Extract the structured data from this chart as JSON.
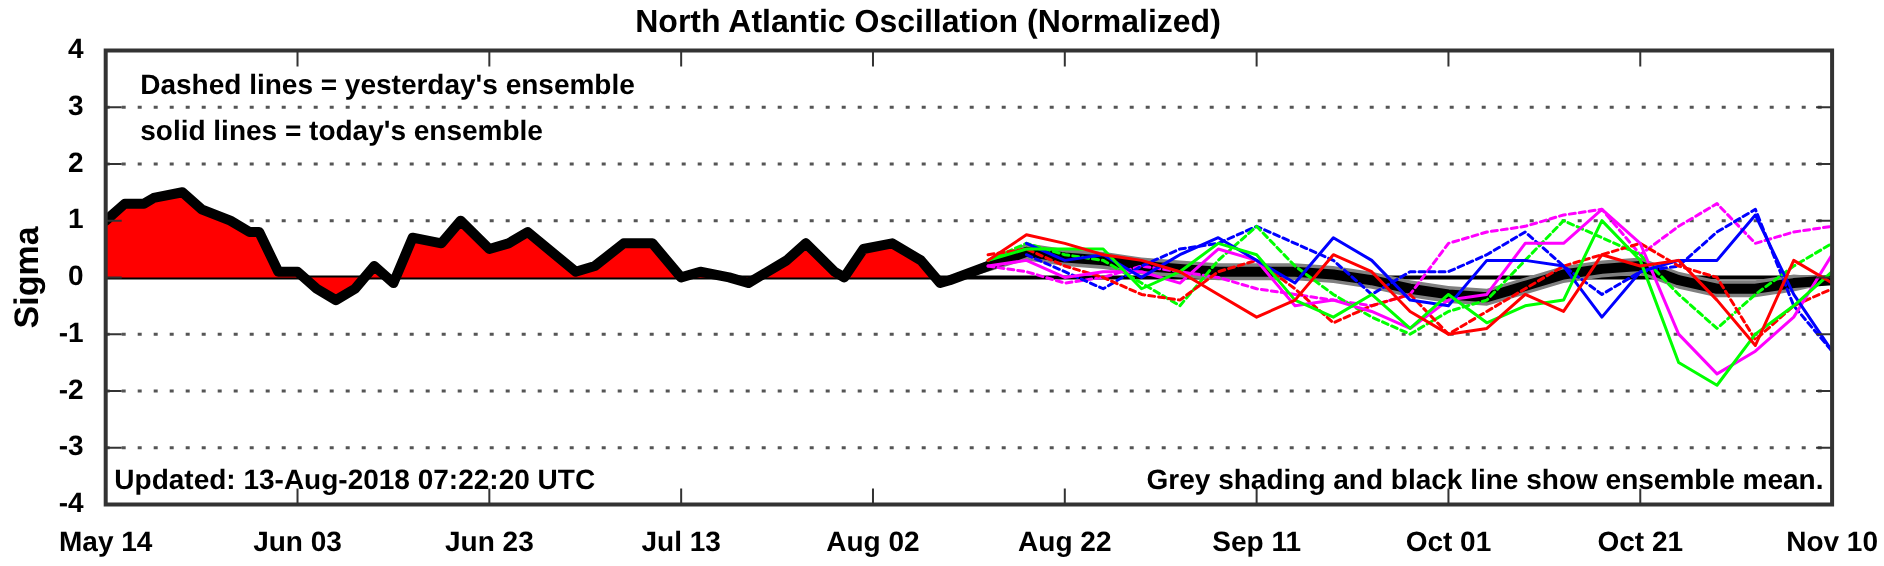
{
  "chart_data": {
    "type": "line",
    "title": "North Atlantic Oscillation (Normalized)",
    "ylabel": "Sigma",
    "annotations": [
      "Dashed lines = yesterday's ensemble",
      "solid lines = today's ensemble",
      "Updated: 13-Aug-2018 07:22:20 UTC",
      "Grey shading and black line show ensemble mean."
    ],
    "x": [
      "2018-08-14",
      "2018-08-18",
      "2018-08-22",
      "2018-08-26",
      "2018-08-30",
      "2018-09-03",
      "2018-09-07",
      "2018-09-11",
      "2018-09-15",
      "2018-09-19",
      "2018-09-23",
      "2018-09-27",
      "2018-10-01",
      "2018-10-05",
      "2018-10-09",
      "2018-10-13",
      "2018-10-17",
      "2018-10-21",
      "2018-10-25",
      "2018-10-29",
      "2018-11-02",
      "2018-11-06",
      "2018-11-10"
    ],
    "series": [
      {
        "type": "area",
        "color": "#ff0000",
        "x": [
          "2018-05-14",
          "2018-05-16",
          "2018-05-18",
          "2018-05-19",
          "2018-05-22",
          "2018-05-24",
          "2018-05-27",
          "2018-05-29",
          "2018-05-30",
          "2018-06-01",
          "2018-06-03",
          "2018-06-05",
          "2018-06-07",
          "2018-06-09",
          "2018-06-11",
          "2018-06-13",
          "2018-06-15",
          "2018-06-18",
          "2018-06-20",
          "2018-06-23",
          "2018-06-25",
          "2018-06-27",
          "2018-07-02",
          "2018-07-04",
          "2018-07-07",
          "2018-07-09",
          "2018-07-10",
          "2018-07-13",
          "2018-07-15",
          "2018-07-18",
          "2018-07-20",
          "2018-07-24",
          "2018-07-26",
          "2018-07-29",
          "2018-07-30",
          "2018-08-01",
          "2018-08-04",
          "2018-08-07",
          "2018-08-09",
          "2018-08-10"
        ],
        "values": [
          1.0,
          1.3,
          1.3,
          1.4,
          1.5,
          1.2,
          1.0,
          0.8,
          0.8,
          0.1,
          0.1,
          -0.2,
          -0.4,
          -0.2,
          0.2,
          -0.1,
          0.7,
          0.6,
          1.0,
          0.5,
          0.6,
          0.8,
          0.1,
          0.2,
          0.6,
          0.6,
          0.6,
          0.0,
          0.1,
          0.0,
          -0.1,
          0.3,
          0.6,
          0.1,
          0.0,
          0.5,
          0.6,
          0.3,
          -0.1,
          -0.05
        ]
      },
      {
        "color": "#ff0000",
        "values": [
          0.3,
          0.75,
          0.6,
          0.4,
          0.3,
          0.1,
          -0.3,
          -0.7,
          -0.4,
          0.4,
          0.1,
          -0.6,
          -1.0,
          -0.9,
          -0.3,
          -0.6,
          0.4,
          0.2,
          0.3,
          -0.4,
          -1.2,
          0.3,
          -0.1
        ]
      },
      {
        "color": "#00ff00",
        "values": [
          0.3,
          0.5,
          0.5,
          0.5,
          -0.2,
          0.1,
          0.6,
          0.4,
          -0.4,
          -0.7,
          -0.3,
          -0.9,
          -0.3,
          -0.8,
          -0.5,
          -0.4,
          1.0,
          0.3,
          -1.5,
          -1.9,
          -1.0,
          -0.5,
          0.1
        ]
      },
      {
        "color": "#0000ff",
        "values": [
          null,
          0.6,
          0.3,
          0.4,
          0.0,
          0.4,
          0.7,
          0.3,
          -0.1,
          0.7,
          0.3,
          -0.4,
          -0.5,
          0.3,
          0.3,
          0.2,
          -0.7,
          0.1,
          0.3,
          0.3,
          1.1,
          -0.3,
          -1.3
        ]
      },
      {
        "color": "#ff00ff",
        "values": [
          0.2,
          0.3,
          0.0,
          0.1,
          0.1,
          -0.1,
          0.5,
          0.3,
          -0.5,
          -0.4,
          -0.6,
          -0.9,
          -0.4,
          -0.3,
          0.6,
          0.6,
          1.2,
          0.6,
          -1.0,
          -1.7,
          -1.3,
          -0.7,
          0.4
        ]
      },
      {
        "color": "#ff0000",
        "line_style": "dashed",
        "values": [
          0.4,
          0.5,
          0.2,
          0.0,
          -0.3,
          -0.4,
          0.1,
          0.3,
          -0.2,
          -0.8,
          -0.5,
          -0.3,
          -1.0,
          -0.6,
          -0.2,
          0.2,
          0.4,
          0.6,
          0.2,
          0.0,
          -1.1,
          -0.5,
          -0.2
        ]
      },
      {
        "color": "#00ff00",
        "line_style": "dashed",
        "values": [
          0.3,
          0.6,
          0.4,
          0.3,
          -0.1,
          -0.5,
          0.3,
          0.9,
          0.2,
          -0.3,
          -0.7,
          -1.0,
          -0.6,
          -0.4,
          0.3,
          1.0,
          0.7,
          0.4,
          -0.3,
          -0.9,
          -0.3,
          0.2,
          0.6
        ]
      },
      {
        "color": "#0000ff",
        "line_style": "dashed",
        "values": [
          null,
          0.4,
          0.1,
          -0.2,
          0.2,
          0.5,
          0.6,
          0.9,
          0.6,
          0.3,
          -0.3,
          0.1,
          0.1,
          0.4,
          0.8,
          0.2,
          -0.3,
          0.1,
          0.2,
          0.8,
          1.2,
          -0.5,
          -1.3
        ]
      },
      {
        "color": "#ff00ff",
        "line_style": "dashed",
        "values": [
          0.2,
          0.1,
          -0.1,
          0.0,
          0.2,
          0.1,
          0.0,
          -0.2,
          -0.3,
          -0.4,
          -0.5,
          -0.3,
          0.6,
          0.8,
          0.9,
          1.1,
          1.2,
          0.4,
          0.9,
          1.3,
          0.6,
          0.8,
          0.9
        ]
      },
      {
        "color": "#000000",
        "x": [
          "2018-05-14",
          "2018-05-16",
          "2018-05-18",
          "2018-05-19",
          "2018-05-22",
          "2018-05-24",
          "2018-05-27",
          "2018-05-29",
          "2018-05-30",
          "2018-06-01",
          "2018-06-03",
          "2018-06-05",
          "2018-06-07",
          "2018-06-09",
          "2018-06-11",
          "2018-06-13",
          "2018-06-15",
          "2018-06-18",
          "2018-06-20",
          "2018-06-23",
          "2018-06-25",
          "2018-06-27",
          "2018-07-02",
          "2018-07-04",
          "2018-07-07",
          "2018-07-09",
          "2018-07-10",
          "2018-07-13",
          "2018-07-15",
          "2018-07-18",
          "2018-07-20",
          "2018-07-24",
          "2018-07-26",
          "2018-07-29",
          "2018-07-30",
          "2018-08-01",
          "2018-08-04",
          "2018-08-07",
          "2018-08-09",
          "2018-08-10",
          "2018-08-14",
          "2018-08-18",
          "2018-08-22",
          "2018-08-26",
          "2018-08-30",
          "2018-09-03",
          "2018-09-07",
          "2018-09-11",
          "2018-09-15",
          "2018-09-19",
          "2018-09-23",
          "2018-09-27",
          "2018-10-01",
          "2018-10-05",
          "2018-10-09",
          "2018-10-13",
          "2018-10-17",
          "2018-10-21",
          "2018-10-25",
          "2018-10-29",
          "2018-11-02",
          "2018-11-06",
          "2018-11-10"
        ],
        "values": [
          1.0,
          1.3,
          1.3,
          1.4,
          1.5,
          1.2,
          1.0,
          0.8,
          0.8,
          0.1,
          0.1,
          -0.2,
          -0.4,
          -0.2,
          0.2,
          -0.1,
          0.7,
          0.6,
          1.0,
          0.5,
          0.6,
          0.8,
          0.1,
          0.2,
          0.6,
          0.6,
          0.6,
          0.0,
          0.1,
          0.0,
          -0.1,
          0.3,
          0.6,
          0.1,
          0.0,
          0.5,
          0.6,
          0.3,
          -0.1,
          -0.05,
          0.2,
          0.45,
          0.35,
          0.3,
          0.2,
          0.15,
          0.1,
          0.1,
          0.1,
          0.05,
          -0.05,
          -0.2,
          -0.3,
          -0.35,
          -0.15,
          0.05,
          0.15,
          0.2,
          -0.05,
          -0.2,
          -0.2,
          -0.1,
          -0.05
        ],
        "lower": [
          null,
          null,
          null,
          null,
          null,
          null,
          null,
          null,
          null,
          null,
          null,
          null,
          null,
          null,
          null,
          null,
          null,
          null,
          null,
          null,
          null,
          null,
          null,
          null,
          null,
          null,
          null,
          null,
          null,
          null,
          null,
          null,
          null,
          null,
          null,
          null,
          null,
          null,
          null,
          -0.1,
          0.1,
          0.3,
          0.2,
          0.15,
          0.05,
          0.0,
          -0.05,
          -0.05,
          -0.05,
          -0.1,
          -0.2,
          -0.35,
          -0.45,
          -0.5,
          -0.3,
          -0.1,
          0.0,
          0.05,
          -0.2,
          -0.35,
          -0.35,
          -0.25,
          -0.1
        ],
        "upper": [
          null,
          null,
          null,
          null,
          null,
          null,
          null,
          null,
          null,
          null,
          null,
          null,
          null,
          null,
          null,
          null,
          null,
          null,
          null,
          null,
          null,
          null,
          null,
          null,
          null,
          null,
          null,
          null,
          null,
          null,
          null,
          null,
          null,
          null,
          null,
          null,
          null,
          null,
          null,
          0.0,
          0.3,
          0.6,
          0.5,
          0.45,
          0.35,
          0.3,
          0.25,
          0.25,
          0.25,
          0.2,
          0.1,
          -0.05,
          -0.15,
          -0.2,
          0.0,
          0.2,
          0.3,
          0.35,
          0.1,
          -0.05,
          -0.05,
          0.05,
          0.0
        ]
      }
    ],
    "xlim": [
      "2018-05-14",
      "2018-11-10"
    ],
    "xticks": [
      {
        "value": "2018-05-14",
        "label": "May 14"
      },
      {
        "value": "2018-06-03",
        "label": "Jun 03"
      },
      {
        "value": "2018-06-23",
        "label": "Jun 23"
      },
      {
        "value": "2018-07-13",
        "label": "Jul 13"
      },
      {
        "value": "2018-08-02",
        "label": "Aug 02"
      },
      {
        "value": "2018-08-22",
        "label": "Aug 22"
      },
      {
        "value": "2018-09-11",
        "label": "Sep 11"
      },
      {
        "value": "2018-10-01",
        "label": "Oct 01"
      },
      {
        "value": "2018-10-21",
        "label": "Oct 21"
      },
      {
        "value": "2018-11-10",
        "label": "Nov 10"
      }
    ],
    "ylim": [
      -4,
      4
    ],
    "yticks": [
      -4,
      -3,
      -2,
      -1,
      0,
      1,
      2,
      3,
      4
    ],
    "ref_lines": [
      {
        "axis": "y",
        "value": 0,
        "color": "#000000"
      }
    ],
    "grid": "y",
    "legend": false
  }
}
